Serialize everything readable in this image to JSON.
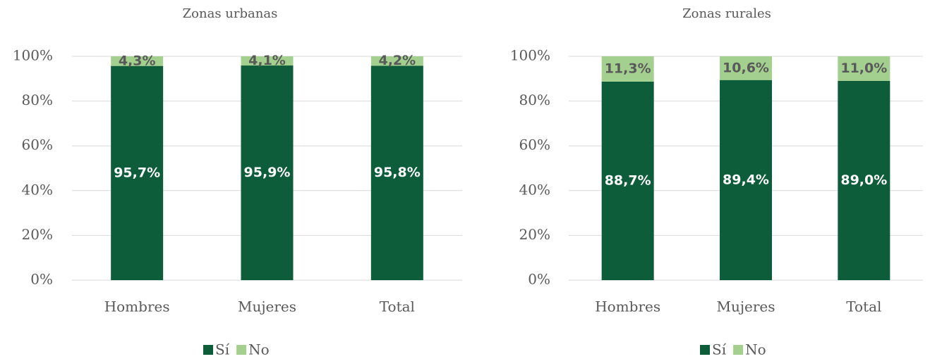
{
  "chart_data": [
    {
      "type": "stacked_bar",
      "title": "Zonas urbanas",
      "categories": [
        "Hombres",
        "Mujeres",
        "Total"
      ],
      "series": [
        {
          "name": "Sí",
          "color": "#0d5c3a",
          "values": [
            95.7,
            95.9,
            95.8
          ],
          "value_labels": [
            "95,7%",
            "95,9%",
            "95,8%"
          ]
        },
        {
          "name": "No",
          "color": "#a3d08f",
          "values": [
            4.3,
            4.1,
            4.2
          ],
          "value_labels": [
            "4,3%",
            "4,1%",
            "4,2%"
          ]
        }
      ],
      "ylim": [
        0,
        100
      ],
      "yticks": [
        {
          "value": 0,
          "label": "0%"
        },
        {
          "value": 20,
          "label": "20%"
        },
        {
          "value": 40,
          "label": "40%"
        },
        {
          "value": 60,
          "label": "60%"
        },
        {
          "value": 80,
          "label": "80%"
        },
        {
          "value": 100,
          "label": "100%"
        }
      ],
      "grid": true,
      "legend": "bottom"
    },
    {
      "type": "stacked_bar",
      "title": "Zonas rurales",
      "categories": [
        "Hombres",
        "Mujeres",
        "Total"
      ],
      "series": [
        {
          "name": "Sí",
          "color": "#0d5c3a",
          "values": [
            88.7,
            89.4,
            89.0
          ],
          "value_labels": [
            "88,7%",
            "89,4%",
            "89,0%"
          ]
        },
        {
          "name": "No",
          "color": "#a3d08f",
          "values": [
            11.3,
            10.6,
            11.0
          ],
          "value_labels": [
            "11,3%",
            "10,6%",
            "11,0%"
          ]
        }
      ],
      "ylim": [
        0,
        100
      ],
      "yticks": [
        {
          "value": 0,
          "label": "0%"
        },
        {
          "value": 20,
          "label": "20%"
        },
        {
          "value": 40,
          "label": "40%"
        },
        {
          "value": 60,
          "label": "60%"
        },
        {
          "value": 80,
          "label": "80%"
        },
        {
          "value": 100,
          "label": "100%"
        }
      ],
      "grid": true,
      "legend": "bottom"
    }
  ]
}
